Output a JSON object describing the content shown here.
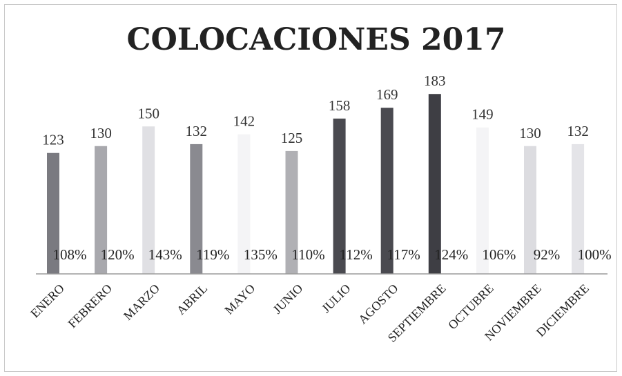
{
  "chart_data": {
    "type": "bar",
    "title": "COLOCACIONES 2017",
    "categories": [
      "ENERO",
      "FEBRERO",
      "MARZO",
      "ABRIL",
      "MAYO",
      "JUNIO",
      "JULIO",
      "AGOSTO",
      "SEPTIEMBRE",
      "OCTUBRE",
      "NOVIEMBRE",
      "DICIEMBRE"
    ],
    "values": [
      123,
      130,
      150,
      132,
      142,
      125,
      158,
      169,
      183,
      149,
      130,
      132
    ],
    "percent_labels": [
      "108%",
      "120%",
      "143%",
      "119%",
      "135%",
      "110%",
      "112%",
      "117%",
      "124%",
      "106%",
      "92%",
      "100%"
    ],
    "bar_colors": [
      "#7a7a80",
      "#a8a8ad",
      "#e0e0e4",
      "#8a8a90",
      "#f4f4f6",
      "#b0b0b4",
      "#4a4a50",
      "#4a4a50",
      "#3e3e44",
      "#f4f4f6",
      "#dcdce0",
      "#e4e4e8"
    ],
    "xlabel": "",
    "ylabel": "",
    "ylim": [
      0,
      220
    ],
    "grid": false,
    "legend": "none"
  }
}
